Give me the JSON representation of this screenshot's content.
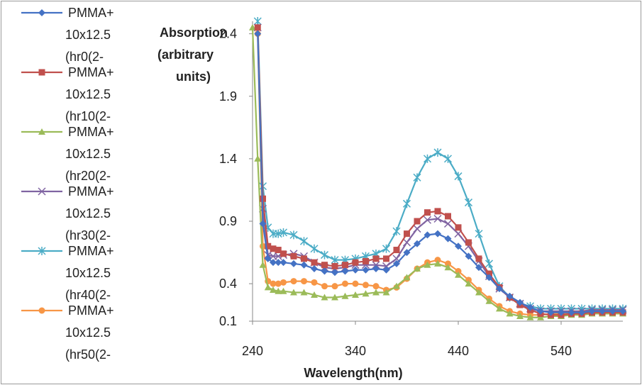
{
  "chart_data": {
    "type": "line",
    "title": "",
    "xlabel": "Wavelength(nm)",
    "ylabel": "Absorption (arbitrary units)",
    "xlim": [
      240,
      600
    ],
    "ylim": [
      0.1,
      2.5
    ],
    "x_ticks": [
      240,
      340,
      440,
      540
    ],
    "y_ticks": [
      0.1,
      0.4,
      0.9,
      1.4,
      1.9,
      2.4
    ],
    "x_tick_labels": [
      "240",
      "340",
      "440",
      "540"
    ],
    "y_tick_labels": [
      "0.1",
      "0.4",
      "0.9",
      "1.4",
      "1.9",
      "2.4"
    ],
    "grid": false,
    "legend_position": "left",
    "series": [
      {
        "name": "PMMA+ 10x12.5 (hr0(2-",
        "legend_lines": [
          "PMMA+",
          "10x12.5",
          "(hr0(2-"
        ],
        "color": "#4472C4",
        "marker": "diamond",
        "x": [
          245,
          250,
          255,
          260,
          265,
          270,
          280,
          290,
          300,
          310,
          320,
          330,
          340,
          350,
          360,
          370,
          380,
          390,
          400,
          410,
          420,
          430,
          440,
          450,
          460,
          470,
          480,
          490,
          500,
          510,
          520,
          530,
          540,
          550,
          560,
          570,
          580,
          590,
          600
        ],
        "y": [
          2.4,
          0.88,
          0.6,
          0.57,
          0.57,
          0.57,
          0.56,
          0.55,
          0.52,
          0.5,
          0.49,
          0.5,
          0.51,
          0.51,
          0.52,
          0.51,
          0.56,
          0.65,
          0.72,
          0.79,
          0.8,
          0.76,
          0.7,
          0.62,
          0.53,
          0.45,
          0.36,
          0.3,
          0.25,
          0.21,
          0.18,
          0.17,
          0.17,
          0.17,
          0.17,
          0.18,
          0.18,
          0.18,
          0.18
        ]
      },
      {
        "name": "PMMA+ 10x12.5 (hr10(2-",
        "legend_lines": [
          "PMMA+",
          "10x12.5",
          "(hr10(2-"
        ],
        "color": "#C0504D",
        "marker": "square",
        "x": [
          245,
          250,
          255,
          260,
          265,
          270,
          280,
          290,
          300,
          310,
          320,
          330,
          340,
          350,
          360,
          370,
          380,
          390,
          400,
          410,
          420,
          430,
          440,
          450,
          460,
          470,
          480,
          490,
          500,
          510,
          520,
          530,
          540,
          550,
          560,
          570,
          580,
          590,
          600
        ],
        "y": [
          2.45,
          1.08,
          0.7,
          0.68,
          0.67,
          0.64,
          0.62,
          0.6,
          0.57,
          0.55,
          0.54,
          0.55,
          0.57,
          0.58,
          0.6,
          0.6,
          0.67,
          0.8,
          0.9,
          0.97,
          0.98,
          0.94,
          0.85,
          0.73,
          0.6,
          0.48,
          0.37,
          0.29,
          0.23,
          0.19,
          0.16,
          0.15,
          0.15,
          0.16,
          0.16,
          0.17,
          0.17,
          0.17,
          0.17
        ]
      },
      {
        "name": "PMMA+ 10x12.5 (hr20(2-",
        "legend_lines": [
          "PMMA+",
          "10x12.5",
          "(hr20(2-"
        ],
        "color": "#9BBB59",
        "marker": "triangle",
        "x": [
          240,
          245,
          250,
          255,
          260,
          265,
          270,
          280,
          290,
          300,
          310,
          320,
          330,
          340,
          350,
          360,
          370,
          380,
          390,
          400,
          410,
          420,
          430,
          440,
          450,
          460,
          470,
          480,
          490,
          500,
          510,
          520,
          530,
          540,
          550,
          560,
          570,
          580,
          590,
          600
        ],
        "y": [
          2.45,
          1.4,
          0.55,
          0.37,
          0.35,
          0.34,
          0.34,
          0.33,
          0.33,
          0.31,
          0.29,
          0.29,
          0.3,
          0.31,
          0.32,
          0.33,
          0.33,
          0.38,
          0.45,
          0.52,
          0.55,
          0.56,
          0.53,
          0.47,
          0.4,
          0.33,
          0.26,
          0.2,
          0.16,
          0.14,
          0.13,
          0.13,
          0.14,
          0.14,
          0.15,
          0.15,
          0.16,
          0.16,
          0.16,
          0.16
        ]
      },
      {
        "name": "PMMA+ 10x12.5 (hr30(2-",
        "legend_lines": [
          "PMMA+",
          "10x12.5",
          "(hr30(2-"
        ],
        "color": "#8064A2",
        "marker": "x",
        "x": [
          245,
          250,
          255,
          260,
          265,
          270,
          280,
          290,
          300,
          310,
          320,
          330,
          340,
          350,
          360,
          370,
          380,
          390,
          400,
          410,
          420,
          430,
          440,
          450,
          460,
          470,
          480,
          490,
          500,
          510,
          520,
          530,
          540,
          550,
          560,
          570,
          580,
          590,
          600
        ],
        "y": [
          2.45,
          1.0,
          0.63,
          0.62,
          0.62,
          0.63,
          0.64,
          0.62,
          0.57,
          0.53,
          0.52,
          0.53,
          0.55,
          0.55,
          0.55,
          0.54,
          0.6,
          0.73,
          0.84,
          0.91,
          0.92,
          0.88,
          0.8,
          0.7,
          0.58,
          0.46,
          0.36,
          0.29,
          0.24,
          0.2,
          0.18,
          0.18,
          0.18,
          0.18,
          0.18,
          0.19,
          0.19,
          0.19,
          0.19
        ]
      },
      {
        "name": "PMMA+ 10x12.5 (hr40(2-",
        "legend_lines": [
          "PMMA+",
          "10x12.5",
          "(hr40(2-"
        ],
        "color": "#4BACC6",
        "marker": "star",
        "x": [
          245,
          250,
          255,
          260,
          265,
          270,
          280,
          290,
          300,
          310,
          320,
          330,
          340,
          350,
          360,
          370,
          380,
          390,
          400,
          410,
          420,
          430,
          440,
          450,
          460,
          470,
          480,
          490,
          500,
          510,
          520,
          530,
          540,
          550,
          560,
          570,
          580,
          590,
          600
        ],
        "y": [
          2.5,
          1.18,
          0.85,
          0.8,
          0.8,
          0.81,
          0.79,
          0.74,
          0.68,
          0.63,
          0.59,
          0.59,
          0.6,
          0.62,
          0.64,
          0.68,
          0.82,
          1.04,
          1.25,
          1.4,
          1.45,
          1.4,
          1.26,
          1.05,
          0.8,
          0.56,
          0.38,
          0.29,
          0.24,
          0.22,
          0.2,
          0.2,
          0.2,
          0.2,
          0.2,
          0.2,
          0.2,
          0.2,
          0.2
        ]
      },
      {
        "name": "PMMA+ 10x12.5 (hr50(2-",
        "legend_lines": [
          "PMMA+",
          "10x12.5",
          "(hr50(2-"
        ],
        "color": "#F79646",
        "marker": "circle",
        "x": [
          245,
          250,
          255,
          260,
          265,
          270,
          280,
          290,
          300,
          310,
          320,
          330,
          340,
          350,
          360,
          370,
          380,
          390,
          400,
          410,
          420,
          430,
          440,
          450,
          460,
          470,
          480,
          490,
          500,
          510,
          520,
          530,
          540,
          550,
          560,
          570,
          580,
          590,
          600
        ],
        "y": [
          2.4,
          0.7,
          0.42,
          0.4,
          0.4,
          0.41,
          0.42,
          0.42,
          0.41,
          0.38,
          0.38,
          0.4,
          0.4,
          0.39,
          0.38,
          0.35,
          0.37,
          0.44,
          0.52,
          0.57,
          0.59,
          0.56,
          0.5,
          0.43,
          0.35,
          0.28,
          0.22,
          0.18,
          0.16,
          0.15,
          0.15,
          0.16,
          0.16,
          0.16,
          0.17,
          0.17,
          0.17,
          0.17,
          0.17
        ]
      }
    ]
  }
}
